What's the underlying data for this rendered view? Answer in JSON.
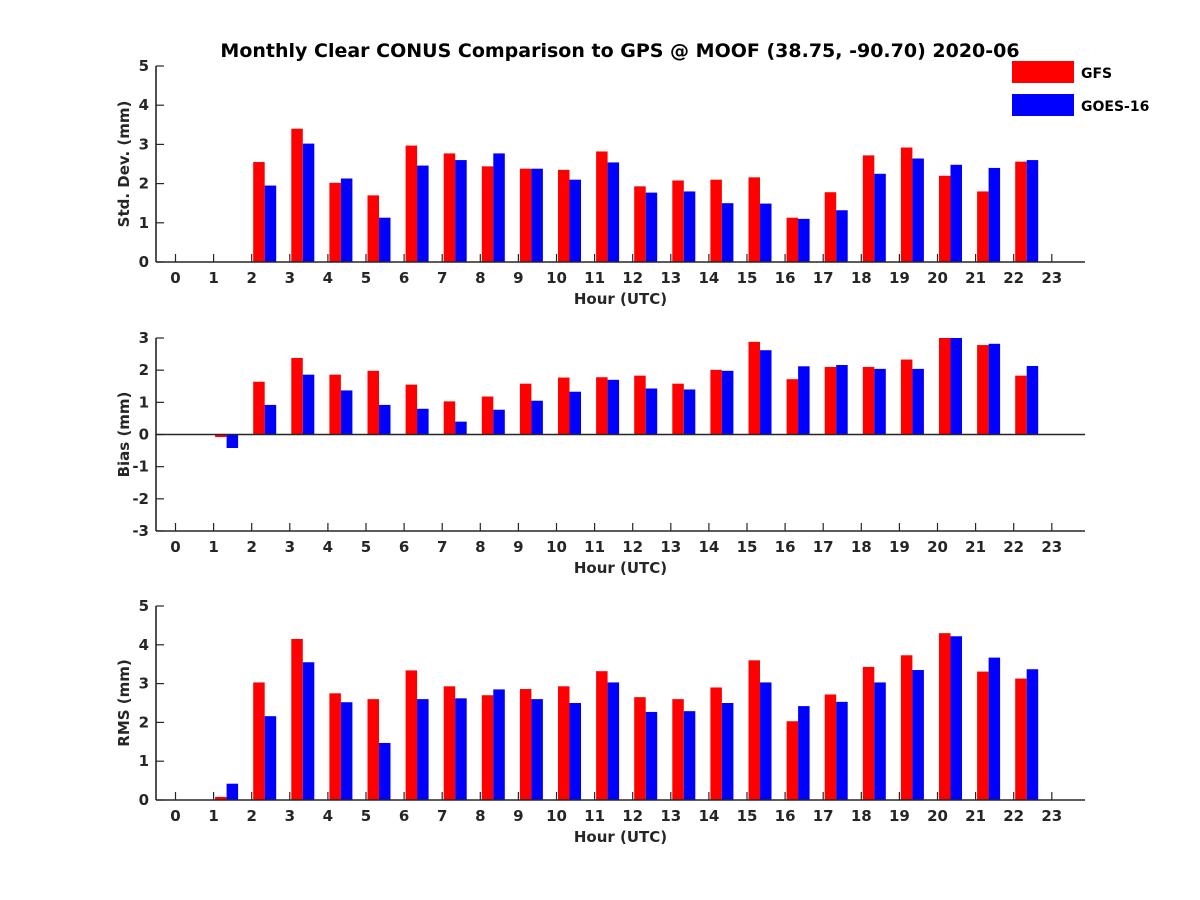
{
  "title": "Monthly Clear CONUS Comparison to GPS @ MOOF (38.75, -90.70) 2020-06",
  "legend": {
    "placement": "top-right",
    "entries": [
      {
        "name": "GFS",
        "color": "#ff0000"
      },
      {
        "name": "GOES-16",
        "color": "#0000ff"
      }
    ]
  },
  "chart_data": [
    {
      "type": "bar",
      "xlabel": "Hour (UTC)",
      "ylabel": "Std. Dev. (mm)",
      "ylim": [
        0,
        5
      ],
      "yticks": [
        "0",
        "1",
        "2",
        "3",
        "4",
        "5"
      ],
      "categories": [
        "0",
        "1",
        "2",
        "3",
        "4",
        "5",
        "6",
        "7",
        "8",
        "9",
        "10",
        "11",
        "12",
        "13",
        "14",
        "15",
        "16",
        "17",
        "18",
        "19",
        "20",
        "21",
        "22",
        "23"
      ],
      "series": [
        {
          "name": "GFS",
          "color": "#ff0000",
          "values": [
            null,
            null,
            2.55,
            3.4,
            2.02,
            1.7,
            2.97,
            2.77,
            2.44,
            2.38,
            2.35,
            2.82,
            1.93,
            2.08,
            2.1,
            2.16,
            1.13,
            1.78,
            2.72,
            2.92,
            2.2,
            1.8,
            2.56,
            null
          ]
        },
        {
          "name": "GOES-16",
          "color": "#0000ff",
          "values": [
            null,
            null,
            1.95,
            3.02,
            2.13,
            1.13,
            2.46,
            2.6,
            2.77,
            2.38,
            2.1,
            2.54,
            1.77,
            1.8,
            1.5,
            1.49,
            1.1,
            1.32,
            2.25,
            2.64,
            2.48,
            2.4,
            2.6,
            null
          ]
        }
      ]
    },
    {
      "type": "bar",
      "xlabel": "Hour (UTC)",
      "ylabel": "Bias (mm)",
      "ylim": [
        -3,
        3
      ],
      "yticks": [
        "-3",
        "-2",
        "-1",
        "0",
        "1",
        "2",
        "3"
      ],
      "categories": [
        "0",
        "1",
        "2",
        "3",
        "4",
        "5",
        "6",
        "7",
        "8",
        "9",
        "10",
        "11",
        "12",
        "13",
        "14",
        "15",
        "16",
        "17",
        "18",
        "19",
        "20",
        "21",
        "22",
        "23"
      ],
      "series": [
        {
          "name": "GFS",
          "color": "#ff0000",
          "values": [
            null,
            -0.08,
            1.64,
            2.38,
            1.86,
            1.98,
            1.55,
            1.03,
            1.18,
            1.58,
            1.77,
            1.78,
            1.83,
            1.58,
            2.01,
            2.88,
            1.72,
            2.1,
            2.1,
            2.33,
            3.0,
            2.78,
            1.83,
            null
          ]
        },
        {
          "name": "GOES-16",
          "color": "#0000ff",
          "values": [
            null,
            -0.42,
            0.92,
            1.86,
            1.37,
            0.92,
            0.8,
            0.4,
            0.77,
            1.05,
            1.33,
            1.7,
            1.43,
            1.4,
            1.98,
            2.62,
            2.12,
            2.16,
            2.04,
            2.04,
            3.0,
            2.82,
            2.13,
            null
          ]
        }
      ]
    },
    {
      "type": "bar",
      "xlabel": "Hour (UTC)",
      "ylabel": "RMS (mm)",
      "ylim": [
        0,
        5
      ],
      "yticks": [
        "0",
        "1",
        "2",
        "3",
        "4",
        "5"
      ],
      "categories": [
        "0",
        "1",
        "2",
        "3",
        "4",
        "5",
        "6",
        "7",
        "8",
        "9",
        "10",
        "11",
        "12",
        "13",
        "14",
        "15",
        "16",
        "17",
        "18",
        "19",
        "20",
        "21",
        "22",
        "23"
      ],
      "series": [
        {
          "name": "GFS",
          "color": "#ff0000",
          "values": [
            null,
            0.08,
            3.03,
            4.15,
            2.75,
            2.6,
            3.34,
            2.93,
            2.7,
            2.86,
            2.93,
            3.32,
            2.65,
            2.6,
            2.9,
            3.6,
            2.03,
            2.72,
            3.43,
            3.73,
            4.3,
            3.31,
            3.13,
            null
          ]
        },
        {
          "name": "GOES-16",
          "color": "#0000ff",
          "values": [
            null,
            0.42,
            2.16,
            3.55,
            2.52,
            1.47,
            2.6,
            2.62,
            2.85,
            2.6,
            2.5,
            3.03,
            2.27,
            2.29,
            2.5,
            3.03,
            2.42,
            2.53,
            3.03,
            3.35,
            4.22,
            3.67,
            3.37,
            null
          ]
        }
      ]
    }
  ]
}
